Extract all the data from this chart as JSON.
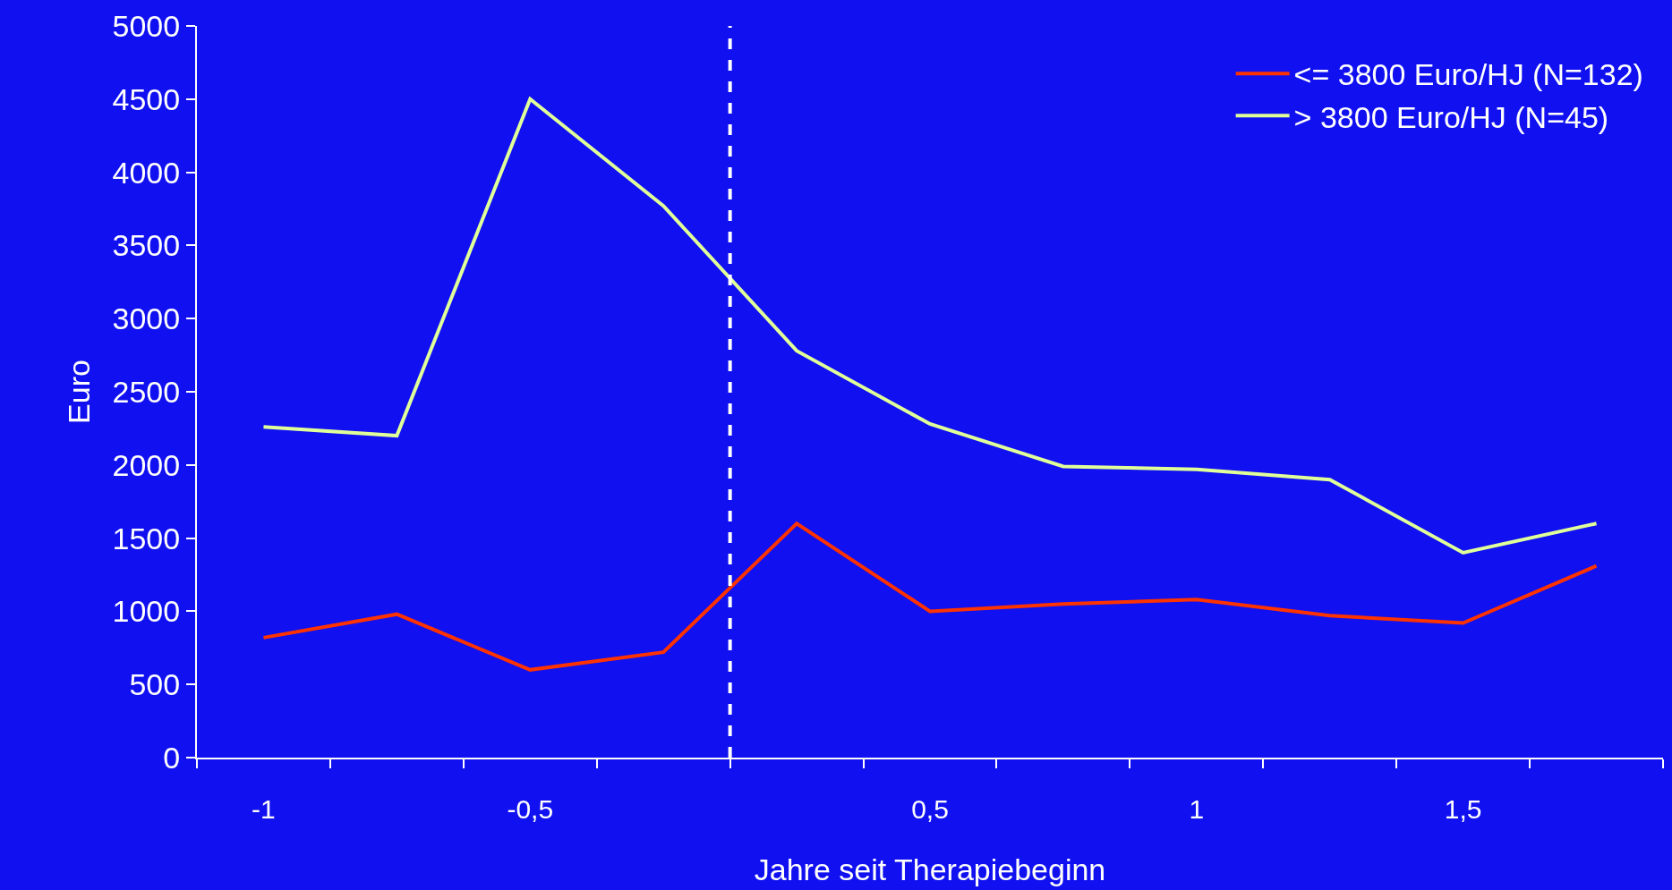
{
  "chart_data": {
    "type": "line",
    "xlabel": "Jahre seit Therapiebeginn",
    "ylabel": "Euro",
    "categories": [
      "-1",
      null,
      "-0,5",
      null,
      null,
      "0,5",
      null,
      "1",
      null,
      "1,5",
      null
    ],
    "series": [
      {
        "name": "<= 3800 Euro/HJ (N=132)",
        "color": "#ff3300",
        "values": [
          820,
          980,
          600,
          720,
          1600,
          1000,
          1050,
          1080,
          970,
          920,
          1310
        ]
      },
      {
        "name": "> 3800 Euro/HJ (N=45)",
        "color": "#e0ff99",
        "values": [
          2260,
          2200,
          4500,
          3770,
          2780,
          2280,
          1990,
          1970,
          1900,
          1400,
          1600
        ]
      }
    ],
    "ylim": [
      0,
      5000
    ],
    "yticks": [
      0,
      500,
      1000,
      1500,
      2000,
      2500,
      3000,
      3500,
      4000,
      4500,
      5000
    ],
    "grid": false,
    "legend": "top right",
    "marker": "none",
    "line_style": "solid"
  }
}
